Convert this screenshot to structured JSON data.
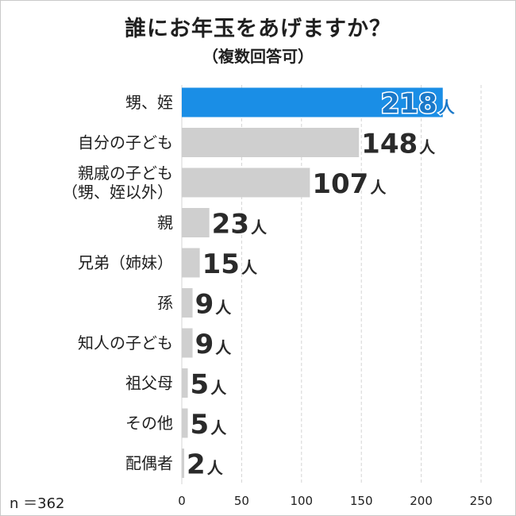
{
  "title": "誰にお年玉をあげますか？",
  "subtitle": "（複数回答可）",
  "footnote": "n ＝362",
  "colors": {
    "highlight_bar": "#1a8ee6",
    "highlight_value": "#1a78c8",
    "default_bar": "#cfcfcf",
    "value_text": "#2a2a2a",
    "grid": "#d4d4d4"
  },
  "chart_data": {
    "type": "bar",
    "orientation": "horizontal",
    "categories": [
      [
        "甥、姪"
      ],
      [
        "自分の子ども"
      ],
      [
        "親戚の子ども",
        "（甥、姪以外）"
      ],
      [
        "親"
      ],
      [
        "兄弟（姉妹）"
      ],
      [
        "孫"
      ],
      [
        "知人の子ども"
      ],
      [
        "祖父母"
      ],
      [
        "その他"
      ],
      [
        "配偶者"
      ]
    ],
    "values": [
      218,
      148,
      107,
      23,
      15,
      9,
      9,
      5,
      5,
      2
    ],
    "value_unit": "人",
    "highlight_index": 0,
    "xlim": [
      0,
      250
    ],
    "xticks": [
      0,
      50,
      100,
      150,
      200,
      250
    ],
    "grid": true,
    "gridlines": "vertical dashed"
  }
}
